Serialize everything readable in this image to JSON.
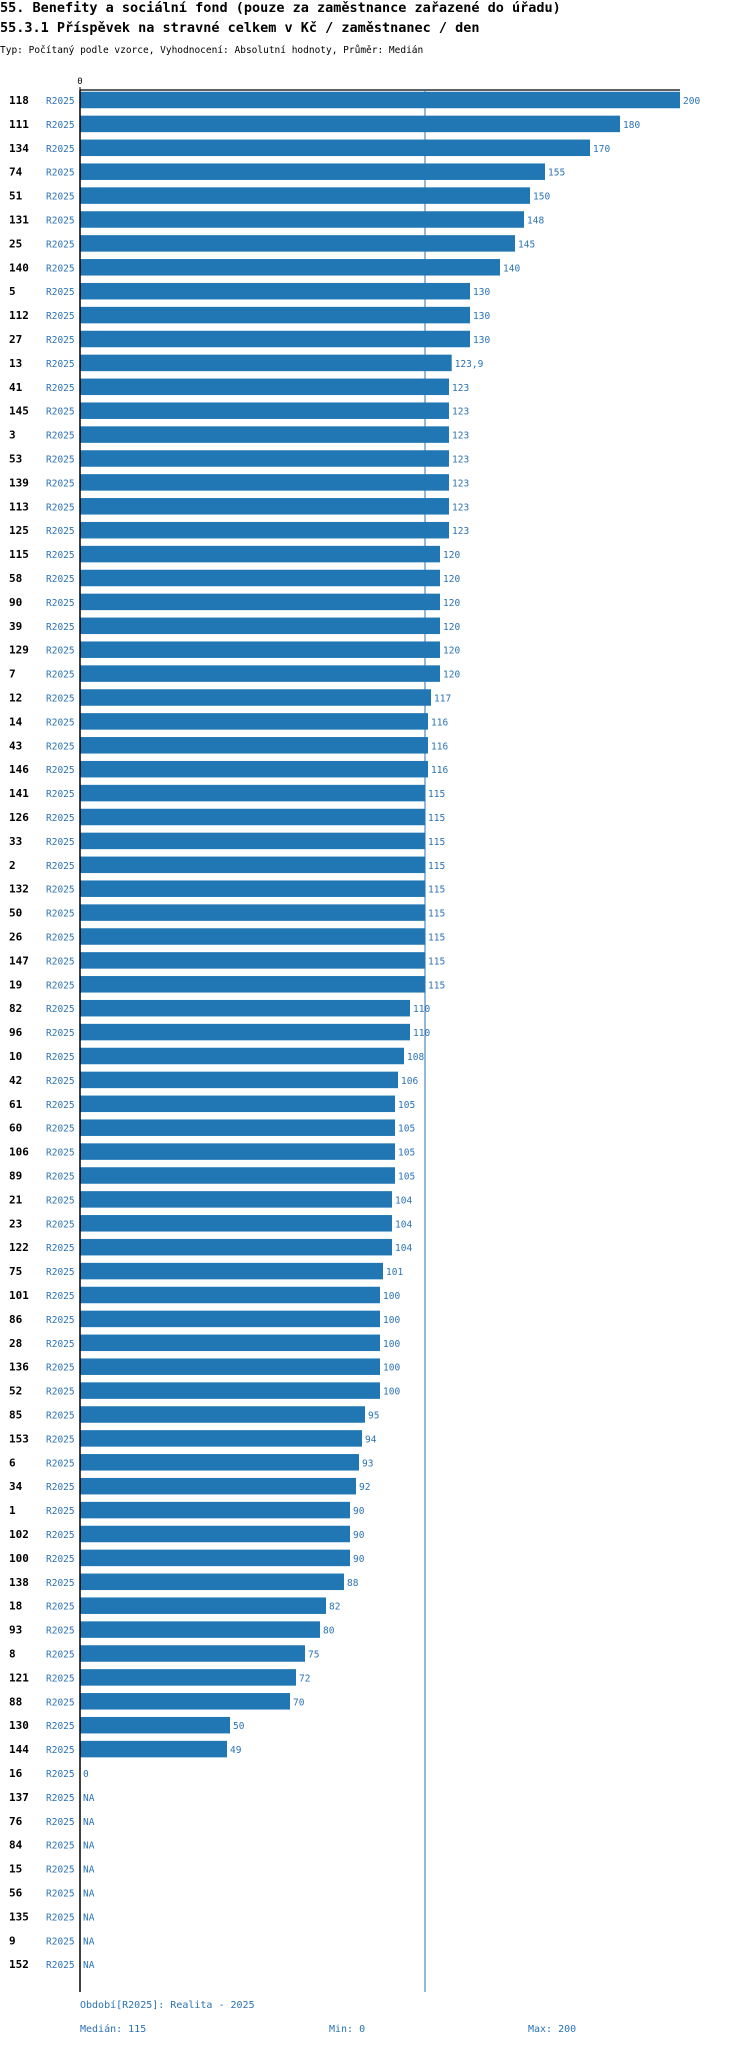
{
  "header": {
    "title1": "55. Benefity a sociální fond (pouze za zaměstnance zařazené do úřadu)",
    "title2": "55.3.1 Příspěvek na stravné celkem v Kč / zaměstnanec / den",
    "subtitle": "Typ: Počítaný podle vzorce, Vyhodnocení: Absolutní hodnoty, Průměr: Medián"
  },
  "chart_data": {
    "type": "bar",
    "orientation": "horizontal",
    "xlim": [
      0,
      200
    ],
    "x_ticks": [
      "0"
    ],
    "median": 115,
    "period_label": "R2025",
    "bar_color": "#2077b4",
    "median_line_color": "#2a72b5",
    "value_label_color": "#2a72b5",
    "rows": [
      {
        "id": "118",
        "value": 200,
        "label": "200"
      },
      {
        "id": "111",
        "value": 180,
        "label": "180"
      },
      {
        "id": "134",
        "value": 170,
        "label": "170"
      },
      {
        "id": "74",
        "value": 155,
        "label": "155"
      },
      {
        "id": "51",
        "value": 150,
        "label": "150"
      },
      {
        "id": "131",
        "value": 148,
        "label": "148"
      },
      {
        "id": "25",
        "value": 145,
        "label": "145"
      },
      {
        "id": "140",
        "value": 140,
        "label": "140"
      },
      {
        "id": "5",
        "value": 130,
        "label": "130"
      },
      {
        "id": "112",
        "value": 130,
        "label": "130"
      },
      {
        "id": "27",
        "value": 130,
        "label": "130"
      },
      {
        "id": "13",
        "value": 123.9,
        "label": "123,9"
      },
      {
        "id": "41",
        "value": 123,
        "label": "123"
      },
      {
        "id": "145",
        "value": 123,
        "label": "123"
      },
      {
        "id": "3",
        "value": 123,
        "label": "123"
      },
      {
        "id": "53",
        "value": 123,
        "label": "123"
      },
      {
        "id": "139",
        "value": 123,
        "label": "123"
      },
      {
        "id": "113",
        "value": 123,
        "label": "123"
      },
      {
        "id": "125",
        "value": 123,
        "label": "123"
      },
      {
        "id": "115",
        "value": 120,
        "label": "120"
      },
      {
        "id": "58",
        "value": 120,
        "label": "120"
      },
      {
        "id": "90",
        "value": 120,
        "label": "120"
      },
      {
        "id": "39",
        "value": 120,
        "label": "120"
      },
      {
        "id": "129",
        "value": 120,
        "label": "120"
      },
      {
        "id": "7",
        "value": 120,
        "label": "120"
      },
      {
        "id": "12",
        "value": 117,
        "label": "117"
      },
      {
        "id": "14",
        "value": 116,
        "label": "116"
      },
      {
        "id": "43",
        "value": 116,
        "label": "116"
      },
      {
        "id": "146",
        "value": 116,
        "label": "116"
      },
      {
        "id": "141",
        "value": 115,
        "label": "115"
      },
      {
        "id": "126",
        "value": 115,
        "label": "115"
      },
      {
        "id": "33",
        "value": 115,
        "label": "115"
      },
      {
        "id": "2",
        "value": 115,
        "label": "115"
      },
      {
        "id": "132",
        "value": 115,
        "label": "115"
      },
      {
        "id": "50",
        "value": 115,
        "label": "115"
      },
      {
        "id": "26",
        "value": 115,
        "label": "115"
      },
      {
        "id": "147",
        "value": 115,
        "label": "115"
      },
      {
        "id": "19",
        "value": 115,
        "label": "115"
      },
      {
        "id": "82",
        "value": 110,
        "label": "110"
      },
      {
        "id": "96",
        "value": 110,
        "label": "110"
      },
      {
        "id": "10",
        "value": 108,
        "label": "108"
      },
      {
        "id": "42",
        "value": 106,
        "label": "106"
      },
      {
        "id": "61",
        "value": 105,
        "label": "105"
      },
      {
        "id": "60",
        "value": 105,
        "label": "105"
      },
      {
        "id": "106",
        "value": 105,
        "label": "105"
      },
      {
        "id": "89",
        "value": 105,
        "label": "105"
      },
      {
        "id": "21",
        "value": 104,
        "label": "104"
      },
      {
        "id": "23",
        "value": 104,
        "label": "104"
      },
      {
        "id": "122",
        "value": 104,
        "label": "104"
      },
      {
        "id": "75",
        "value": 101,
        "label": "101"
      },
      {
        "id": "101",
        "value": 100,
        "label": "100"
      },
      {
        "id": "86",
        "value": 100,
        "label": "100"
      },
      {
        "id": "28",
        "value": 100,
        "label": "100"
      },
      {
        "id": "136",
        "value": 100,
        "label": "100"
      },
      {
        "id": "52",
        "value": 100,
        "label": "100"
      },
      {
        "id": "85",
        "value": 95,
        "label": "95"
      },
      {
        "id": "153",
        "value": 94,
        "label": "94"
      },
      {
        "id": "6",
        "value": 93,
        "label": "93"
      },
      {
        "id": "34",
        "value": 92,
        "label": "92"
      },
      {
        "id": "1",
        "value": 90,
        "label": "90"
      },
      {
        "id": "102",
        "value": 90,
        "label": "90"
      },
      {
        "id": "100",
        "value": 90,
        "label": "90"
      },
      {
        "id": "138",
        "value": 88,
        "label": "88"
      },
      {
        "id": "18",
        "value": 82,
        "label": "82"
      },
      {
        "id": "93",
        "value": 80,
        "label": "80"
      },
      {
        "id": "8",
        "value": 75,
        "label": "75"
      },
      {
        "id": "121",
        "value": 72,
        "label": "72"
      },
      {
        "id": "88",
        "value": 70,
        "label": "70"
      },
      {
        "id": "130",
        "value": 50,
        "label": "50"
      },
      {
        "id": "144",
        "value": 49,
        "label": "49"
      },
      {
        "id": "16",
        "value": 0,
        "label": "0"
      },
      {
        "id": "137",
        "value": null,
        "label": "NA"
      },
      {
        "id": "76",
        "value": null,
        "label": "NA"
      },
      {
        "id": "84",
        "value": null,
        "label": "NA"
      },
      {
        "id": "15",
        "value": null,
        "label": "NA"
      },
      {
        "id": "56",
        "value": null,
        "label": "NA"
      },
      {
        "id": "135",
        "value": null,
        "label": "NA"
      },
      {
        "id": "9",
        "value": null,
        "label": "NA"
      },
      {
        "id": "152",
        "value": null,
        "label": "NA"
      }
    ]
  },
  "footer": {
    "period": "Období[R2025]: Realita - 2025",
    "median": "Medián: 115",
    "min": "Min: 0",
    "max": "Max: 200"
  }
}
